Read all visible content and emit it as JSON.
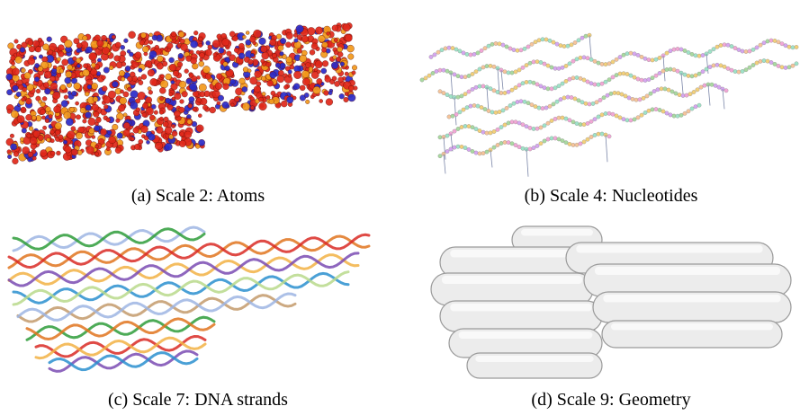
{
  "figure": {
    "panels": [
      {
        "caption": "(a) Scale 2: Atoms",
        "render": "atoms"
      },
      {
        "caption": "(b) Scale 4: Nucleotides",
        "render": "nucleotides"
      },
      {
        "caption": "(c) Scale 7: DNA strands",
        "render": "dna-strands"
      },
      {
        "caption": "(d) Scale 9: Geometry",
        "render": "geometry"
      }
    ],
    "colors": {
      "atom_red": "#e0281a",
      "atom_blue": "#2a2bc8",
      "atom_orange": "#f39a1b",
      "nucleotide_palette": [
        "#f2a7d6",
        "#9fe3c8",
        "#f6c49a",
        "#d6a6f0",
        "#a9d9a0",
        "#f3d07a"
      ],
      "strand_palette": [
        "#9db5e3",
        "#2e9c3a",
        "#e1741e",
        "#d92a24",
        "#f2b244",
        "#7a4bb3",
        "#2a8fcf",
        "#b9d98b",
        "#c39a6b"
      ],
      "cylinder_fill": "#ececec",
      "cylinder_edge": "#9a9a9a"
    }
  }
}
